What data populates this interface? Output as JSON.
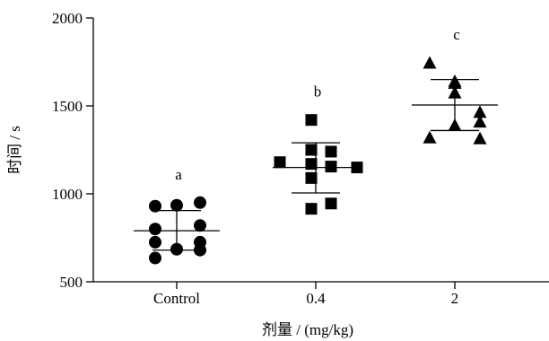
{
  "chart_data": {
    "type": "scatter",
    "title": "",
    "xlabel": "剂量 / (mg/kg)",
    "ylabel": "时间 / s",
    "ylim": [
      500,
      2000
    ],
    "yticks": [
      "500",
      "1000",
      "1500",
      "2000"
    ],
    "grid": false,
    "legend": "none",
    "categories": [
      "Control",
      "0.4",
      "2"
    ],
    "series": [
      {
        "category": "Control",
        "marker": "circle",
        "color": "#000000",
        "annotation": "a",
        "values": [
          930,
          935,
          950,
          820,
          800,
          725,
          725,
          685,
          680,
          635
        ],
        "mean": 790,
        "error_low": 680,
        "error_high": 905
      },
      {
        "category": "0.4",
        "marker": "square",
        "color": "#000000",
        "annotation": "b",
        "values": [
          1420,
          1250,
          1240,
          1180,
          1170,
          1155,
          1150,
          1090,
          945,
          915
        ],
        "mean": 1150,
        "error_low": 1005,
        "error_high": 1290
      },
      {
        "category": "2",
        "marker": "triangle",
        "color": "#000000",
        "annotation": "c",
        "values": [
          1745,
          1640,
          1630,
          1575,
          1465,
          1410,
          1390,
          1320,
          1315
        ],
        "mean": 1505,
        "error_low": 1360,
        "error_high": 1650
      }
    ]
  }
}
